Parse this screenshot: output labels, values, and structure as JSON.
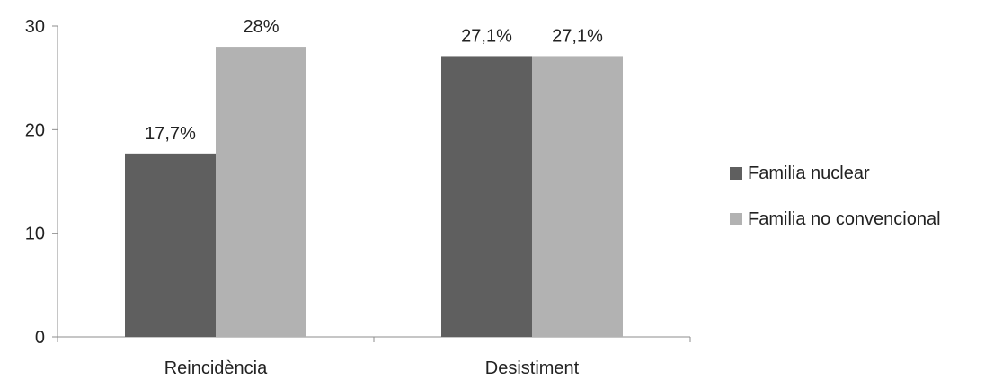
{
  "chart_data": {
    "type": "bar",
    "categories": [
      "Reincidència",
      "Desistiment"
    ],
    "series": [
      {
        "name": "Familia nuclear",
        "values": [
          17.7,
          27.1
        ],
        "labels": [
          "17,7%",
          "27,1%"
        ],
        "color": "#5f5f5f"
      },
      {
        "name": "Familia no convencional",
        "values": [
          28,
          27.1
        ],
        "labels": [
          "28%",
          "27,1%"
        ],
        "color": "#b2b2b2"
      }
    ],
    "y_ticks": [
      "0",
      "10",
      "20",
      "30"
    ],
    "y_tick_values": [
      0,
      10,
      20,
      30
    ],
    "ylim": [
      0,
      30
    ],
    "grid": false,
    "legend_position": "right"
  }
}
